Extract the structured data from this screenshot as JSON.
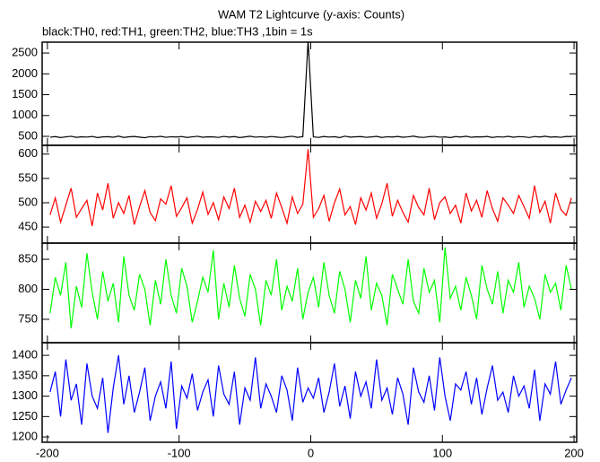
{
  "chart_data": {
    "type": "line",
    "title": "WAM T2 Lightcurve (y-axis: Counts)",
    "subtitle": "black:TH0, red:TH1, green:TH2, blue:TH3 ,1bin = 1s",
    "x": [
      -198,
      -194,
      -190,
      -186,
      -182,
      -178,
      -174,
      -170,
      -166,
      -162,
      -158,
      -154,
      -150,
      -146,
      -142,
      -138,
      -134,
      -130,
      -126,
      -122,
      -118,
      -114,
      -110,
      -106,
      -102,
      -98,
      -94,
      -90,
      -86,
      -82,
      -78,
      -74,
      -70,
      -66,
      -62,
      -58,
      -54,
      -50,
      -46,
      -42,
      -38,
      -34,
      -30,
      -26,
      -22,
      -18,
      -14,
      -10,
      -6,
      -2,
      2,
      6,
      10,
      14,
      18,
      22,
      26,
      30,
      34,
      38,
      42,
      46,
      50,
      54,
      58,
      62,
      66,
      70,
      74,
      78,
      82,
      86,
      90,
      94,
      98,
      102,
      106,
      110,
      114,
      118,
      122,
      126,
      130,
      134,
      138,
      142,
      146,
      150,
      154,
      158,
      162,
      166,
      170,
      174,
      178,
      182,
      186,
      190,
      194,
      198
    ],
    "xlim": [
      -204,
      202
    ],
    "xticks": [
      -200,
      -100,
      0,
      100,
      200
    ],
    "panels": [
      {
        "ylim": [
          285,
          2760
        ],
        "yticks": [
          500,
          1000,
          1500,
          2000,
          2500
        ],
        "series": [
          {
            "color": "#000000",
            "values": [
              480,
              495,
              470,
              488,
              502,
              476,
              490,
              483,
              498,
              471,
              486,
              492,
              479,
              505,
              474,
              489,
              497,
              481,
              468,
              493,
              485,
              500,
              477,
              491,
              484,
              496,
              473,
              488,
              502,
              479,
              490,
              486,
              475,
              499,
              482,
              494,
              470,
              487,
              503,
              480,
              491,
              478,
              496,
              484,
              472,
              489,
              501,
              476,
              493,
              2800,
              487,
              475,
              498,
              483,
              492,
              470,
              504,
              481,
              489,
              495,
              477,
              486,
              500,
              473,
              491,
              484,
              497,
              479,
              488,
              506,
              482,
              475,
              493,
              499,
              480,
              487,
              471,
              495,
              484,
              502,
              478,
              490,
              486,
              497,
              474,
              491,
              483,
              500,
              479,
              494,
              488,
              472,
              496,
              485,
              503,
              481,
              490,
              477,
              498,
              492
            ]
          }
        ]
      },
      {
        "ylim": [
          417,
          618
        ],
        "yticks": [
          450,
          500,
          550,
          600
        ],
        "series": [
          {
            "color": "#ff0000",
            "values": [
              475,
              510,
              460,
              495,
              530,
              470,
              488,
              505,
              452,
              520,
              485,
              540,
              468,
              500,
              478,
              515,
              455,
              492,
              525,
              480,
              463,
              508,
              497,
              535,
              472,
              490,
              510,
              458,
              486,
              522,
              476,
              500,
              465,
              512,
              488,
              530,
              470,
              495,
              460,
              503,
              482,
              505,
              468,
              520,
              490,
              458,
              512,
              478,
              497,
              610,
              470,
              488,
              515,
              462,
              500,
              528,
              475,
              492,
              455,
              510,
              485,
              520,
              468,
              498,
              540,
              472,
              505,
              480,
              460,
              515,
              490,
              475,
              530,
              465,
              500,
              512,
              478,
              495,
              458,
              520,
              483,
              505,
              470,
              525,
              488,
              462,
              510,
              495,
              478,
              515,
              492,
              468,
              535,
              480,
              503,
              458,
              520,
              486,
              474,
              510
            ]
          }
        ]
      },
      {
        "ylim": [
          711,
          877
        ],
        "yticks": [
          750,
          800,
          850
        ],
        "series": [
          {
            "color": "#00ff00",
            "values": [
              760,
              820,
              790,
              845,
              735,
              805,
              770,
              860,
              795,
              750,
              830,
              780,
              810,
              745,
              855,
              790,
              765,
              825,
              800,
              740,
              815,
              775,
              850,
              790,
              760,
              835,
              805,
              745,
              780,
              820,
              795,
              865,
              750,
              810,
              770,
              840,
              785,
              755,
              825,
              800,
              740,
              815,
              790,
              850,
              765,
              805,
              780,
              835,
              750,
              795,
              820,
              770,
              845,
              790,
              760,
              830,
              800,
              745,
              815,
              785,
              855,
              765,
              810,
              790,
              740,
              825,
              800,
              775,
              850,
              780,
              760,
              835,
              795,
              815,
              745,
              870,
              785,
              805,
              765,
              820,
              790,
              750,
              840,
              800,
              775,
              830,
              760,
              815,
              795,
              845,
              770,
              805,
              785,
              750,
              825,
              795,
              810,
              765,
              840,
              800
            ]
          }
        ]
      },
      {
        "ylim": [
          1187,
          1431
        ],
        "yticks": [
          1200,
          1250,
          1300,
          1350,
          1400
        ],
        "series": [
          {
            "color": "#0000ff",
            "values": [
              1310,
              1360,
              1250,
              1390,
              1290,
              1330,
              1230,
              1380,
              1300,
              1270,
              1345,
              1210,
              1320,
              1400,
              1280,
              1350,
              1260,
              1310,
              1370,
              1240,
              1300,
              1335,
              1270,
              1385,
              1220,
              1325,
              1295,
              1355,
              1265,
              1310,
              1340,
              1250,
              1375,
              1305,
              1280,
              1360,
              1230,
              1320,
              1290,
              1395,
              1270,
              1330,
              1300,
              1260,
              1350,
              1315,
              1240,
              1370,
              1285,
              1320,
              1295,
              1345,
              1260,
              1310,
              1380,
              1275,
              1325,
              1245,
              1360,
              1300,
              1335,
              1270,
              1390,
              1290,
              1320,
              1255,
              1345,
              1305,
              1230,
              1370,
              1310,
              1285,
              1350,
              1265,
              1395,
              1300,
              1240,
              1330,
              1315,
              1360,
              1280,
              1345,
              1255,
              1320,
              1375,
              1290,
              1310,
              1260,
              1350,
              1300,
              1325,
              1270,
              1365,
              1240,
              1330,
              1305,
              1385,
              1280,
              1315,
              1345
            ]
          }
        ]
      }
    ]
  }
}
